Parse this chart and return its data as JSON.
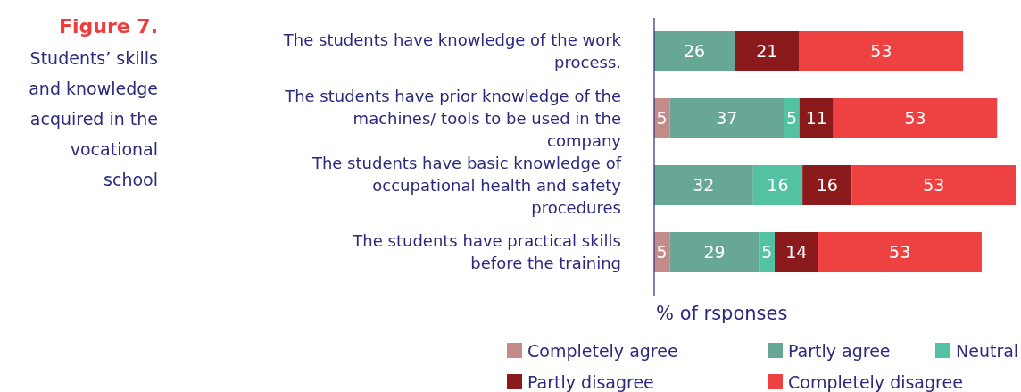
{
  "chart_data": {
    "type": "bar",
    "orientation": "horizontal",
    "stacked": true,
    "data_labels": true,
    "legend": "bottom",
    "title": "Figure 7.",
    "subtitle": "Students’ skills and knowledge acquired in the vocational school",
    "xlabel": "% of rsponses",
    "categories": [
      "The students have knowledge of the work process.",
      "The students have prior knowledge of the machines/ tools to be used in the company",
      "The students have basic knowledge of occupational health and safety procedures",
      "The students have practical skills before the training"
    ],
    "series": [
      {
        "name": "Completely agree",
        "color": "#c48b8b",
        "values": [
          null,
          5,
          null,
          5
        ]
      },
      {
        "name": "Partly agree",
        "color": "#68a696",
        "values": [
          26,
          37,
          32,
          29
        ]
      },
      {
        "name": "Neutral",
        "color": "#52c2a2",
        "values": [
          null,
          5,
          16,
          5
        ]
      },
      {
        "name": "Partly disagree",
        "color": "#8a1a1c",
        "values": [
          21,
          11,
          16,
          14
        ]
      },
      {
        "name": "Completely disagree",
        "color": "#ee4242",
        "values": [
          53,
          53,
          53,
          53
        ]
      }
    ]
  }
}
